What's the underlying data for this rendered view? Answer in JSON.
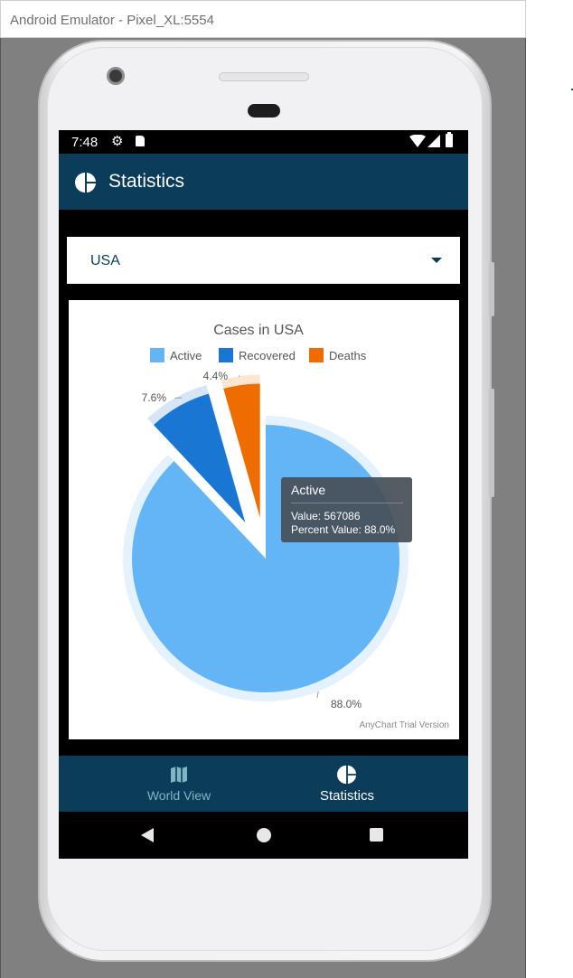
{
  "emulator": {
    "window_title": "Android Emulator - Pixel_XL:5554"
  },
  "statusbar": {
    "time": "7:48"
  },
  "appbar": {
    "title": "Statistics",
    "icon": "pie-chart-icon"
  },
  "country_select": {
    "selected": "USA"
  },
  "chart_data": {
    "type": "pie",
    "title": "Cases in USA",
    "categories": [
      "Active",
      "Recovered",
      "Deaths"
    ],
    "values": [
      567086,
      48974,
      28354
    ],
    "percent_labels": [
      "88.0%",
      "7.6%",
      "4.4%"
    ],
    "colors": [
      "#64b5f6",
      "#1976d2",
      "#ef6c00"
    ],
    "exploded": [
      false,
      true,
      true
    ],
    "legend": {
      "placement": "top",
      "entries": [
        "Active",
        "Recovered",
        "Deaths"
      ]
    },
    "watermark": "AnyChart Trial Version"
  },
  "tooltip": {
    "title": "Active",
    "value_line": "Value: 567086",
    "percent_line": "Percent Value: 88.0%"
  },
  "bottom_nav": {
    "items": [
      {
        "label": "World View",
        "icon": "map-icon",
        "active": false
      },
      {
        "label": "Statistics",
        "icon": "pie-chart-icon",
        "active": true
      }
    ]
  },
  "colors": {
    "primary": "#0b3d5a",
    "nav_inactive": "#7fb6c4"
  }
}
